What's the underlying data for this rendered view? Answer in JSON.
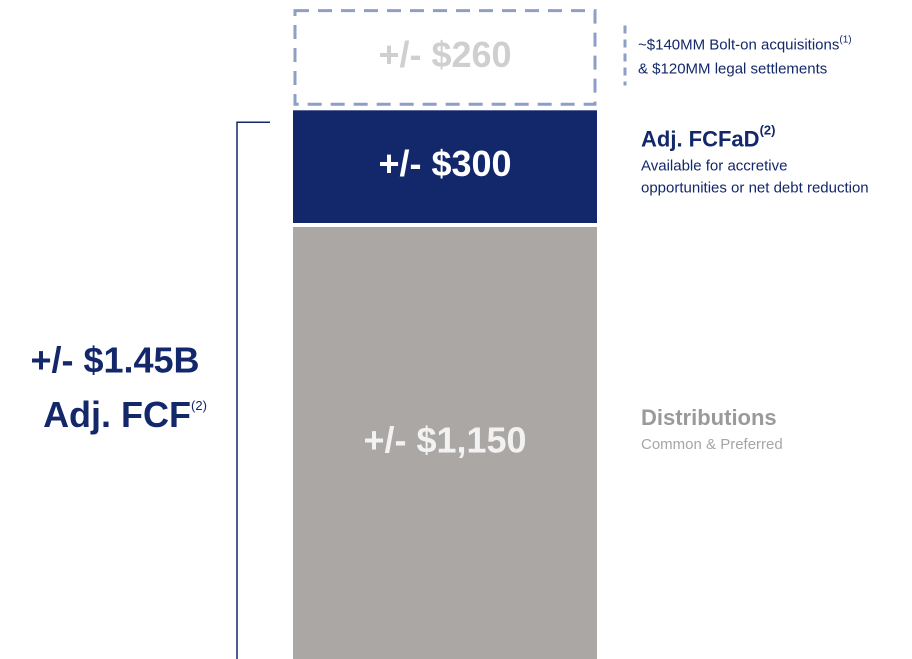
{
  "chart_data": {
    "type": "stacked_bar",
    "series": [
      {
        "name": "Distributions",
        "values": [
          1150
        ],
        "value_labels": [
          "+/- $1,150"
        ],
        "color": "#aaa7a5",
        "style": "solid",
        "description": [
          "Common & Preferred"
        ],
        "label_color": "#f2f2f2",
        "name_color": "#9a9a9a",
        "description_color": "#a6a6a6"
      },
      {
        "name": "Adj. FCFaD",
        "footnote": "(2)",
        "values": [
          300
        ],
        "value_labels": [
          "+/- $300"
        ],
        "color": "#13286b",
        "style": "solid",
        "description": [
          "Available for accretive",
          "opportunities or net debt reduction"
        ],
        "label_color": "#ffffff",
        "name_color": "#13286b",
        "description_color": "#13286b"
      },
      {
        "values": [
          260
        ],
        "value_labels": [
          "+/- $260"
        ],
        "color": "#8e9ec4",
        "style": "dashed",
        "description": [
          "~$140MM Bolt-on acquisitions",
          "& $120MM legal settlements"
        ],
        "description_footnote": "(1)",
        "label_color": "#cfcfcf",
        "description_color": "#13286b"
      }
    ],
    "total": {
      "label": "+/- $1.45B",
      "name": "Adj. FCF",
      "footnote": "(2)",
      "color": "#13286b"
    }
  }
}
